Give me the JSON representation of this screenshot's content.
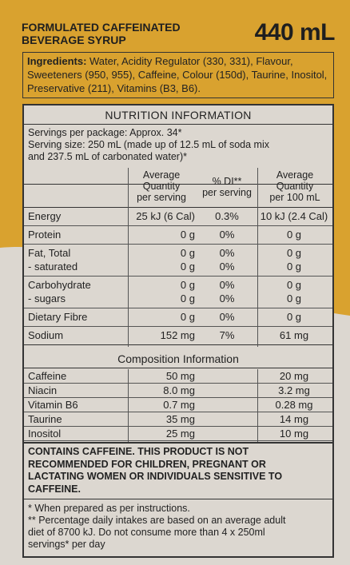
{
  "header": {
    "product_title_line1": "FORMULATED CAFFEINATED",
    "product_title_line2": "BEVERAGE SYRUP",
    "volume": "440 mL"
  },
  "ingredients": {
    "label": "Ingredients:",
    "text": " Water, Acidity Regulator (330, 331), Flavour, Sweeteners (950, 955), Caffeine, Colour (150d), Taurine, Inositol, Preservative (211), Vitamins (B3, B6)."
  },
  "nutrition": {
    "title": "NUTRITION INFORMATION",
    "servings_per_package": "Servings per package: Approx. 34*",
    "serving_size_line1": "Serving size: 250 mL (made up of 12.5 mL of soda mix",
    "serving_size_line2": "and 237.5 mL of carbonated water)*",
    "col_avg_1": "Average",
    "col_avg_2": "Quantity",
    "col_avg_3": "per serving",
    "col_di_1": "% DI**",
    "col_di_2": "per serving",
    "col_100_1": "Average",
    "col_100_2": "Quantity",
    "col_100_3": "per 100 mL",
    "rows": [
      {
        "name": "Energy",
        "avg": "25 kJ (6 Cal)",
        "di": "0.3%",
        "per100": "10 kJ (2.4 Cal)"
      },
      {
        "name": "Protein",
        "avg": "0 g",
        "di": "0%",
        "per100": "0 g"
      },
      {
        "name": "Fat, Total",
        "avg": "0 g",
        "di": "0%",
        "per100": "0 g",
        "sub_name": "- saturated",
        "sub_avg": "0 g",
        "sub_di": "0%",
        "sub_per100": "0 g"
      },
      {
        "name": "Carbohydrate",
        "avg": "0 g",
        "di": "0%",
        "per100": "0 g",
        "sub_name": "- sugars",
        "sub_avg": "0 g",
        "sub_di": "0%",
        "sub_per100": "0 g"
      },
      {
        "name": "Dietary Fibre",
        "avg": "0 g",
        "di": "0%",
        "per100": "0 g"
      },
      {
        "name": "Sodium",
        "avg": "152 mg",
        "di": "7%",
        "per100": "61 mg"
      }
    ]
  },
  "composition": {
    "title": "Composition Information",
    "rows": [
      {
        "name": "Caffeine",
        "avg": "50 mg",
        "per100": "20 mg"
      },
      {
        "name": "Niacin",
        "avg": "8.0 mg",
        "per100": "3.2 mg"
      },
      {
        "name": "Vitamin B6",
        "avg": "0.7 mg",
        "per100": "0.28 mg"
      },
      {
        "name": "Taurine",
        "avg": "35 mg",
        "per100": "14 mg"
      },
      {
        "name": "Inositol",
        "avg": "25 mg",
        "per100": "10 mg"
      }
    ]
  },
  "warning": {
    "line1": "CONTAINS CAFFEINE. THIS PRODUCT IS NOT",
    "line2": "RECOMMENDED FOR CHILDREN, PREGNANT OR",
    "line3": "LACTATING WOMEN OR INDIVIDUALS SENSITIVE TO",
    "line4": "CAFFEINE."
  },
  "footnotes": {
    "note1": "* When prepared as per instructions.",
    "note2_line1": "** Percentage daily intakes are based on an average adult",
    "note2_line2": "diet of 8700 kJ. Do not consume more than 4 x 250ml",
    "note2_line3": "servings* per day"
  },
  "colors": {
    "background_orange": "#d9a22f",
    "background_light": "#dcd7d0",
    "text": "#222222"
  }
}
